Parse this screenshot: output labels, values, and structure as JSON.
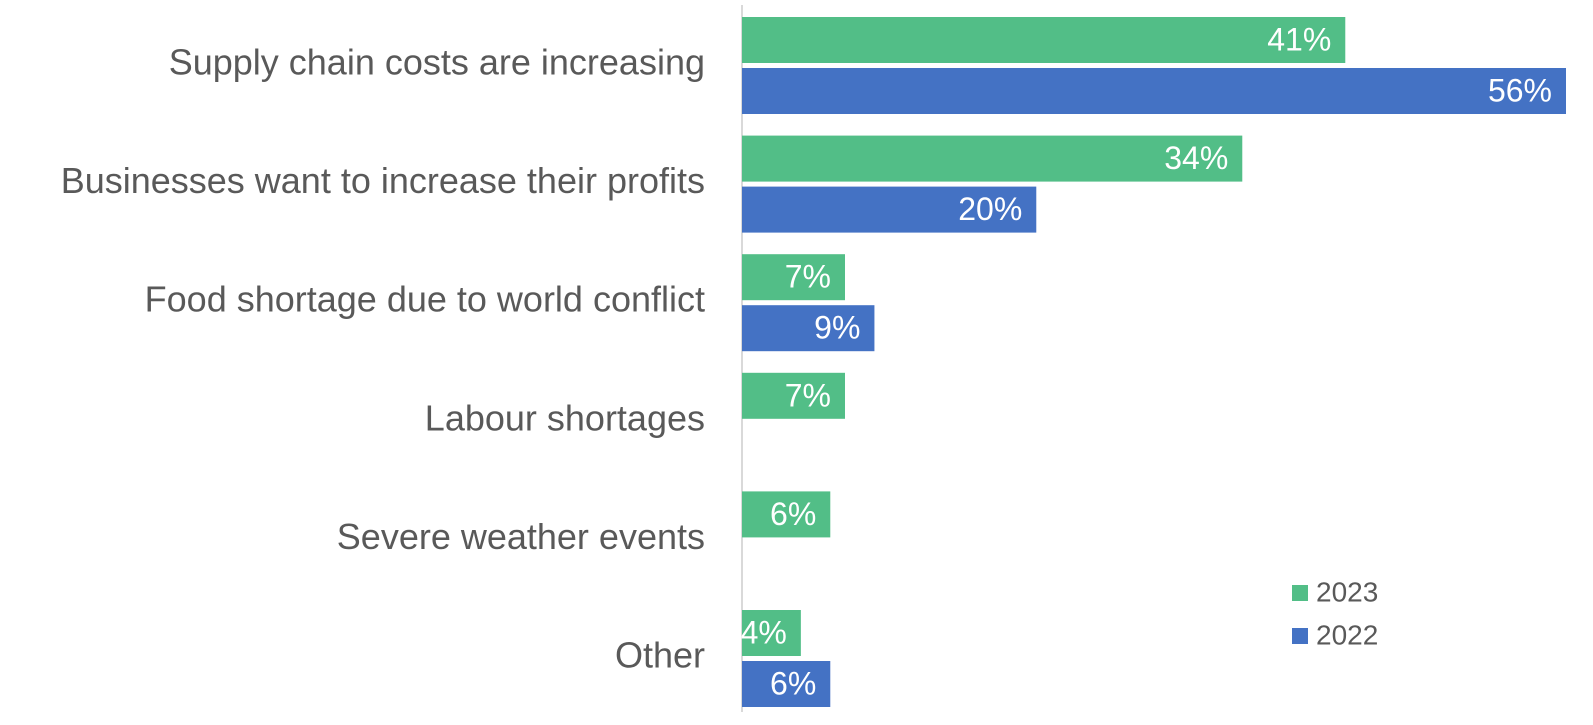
{
  "chart_data": {
    "type": "hbar",
    "categories": [
      "Supply chain costs are increasing",
      "Businesses want to increase their profits",
      "Food shortage due to world conflict",
      "Labour shortages",
      "Severe weather events",
      "Other"
    ],
    "series": [
      {
        "name": "2023",
        "color": "#52be87",
        "values": [
          41,
          34,
          7,
          7,
          6,
          4
        ],
        "value_labels": [
          "41%",
          "34%",
          "7%",
          "7%",
          "6%",
          "4%"
        ]
      },
      {
        "name": "2022",
        "color": "#4472c4",
        "values": [
          56,
          20,
          9,
          null,
          null,
          6
        ],
        "value_labels": [
          "56%",
          "20%",
          "9%",
          null,
          null,
          "6%"
        ]
      }
    ],
    "xlim": [
      0,
      56
    ]
  }
}
